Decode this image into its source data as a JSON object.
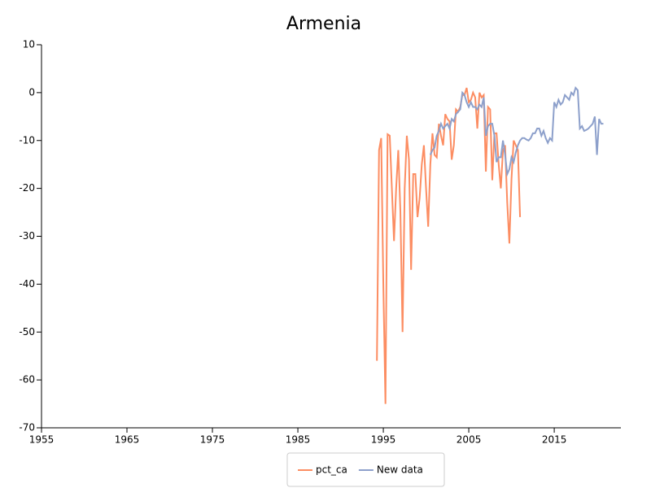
{
  "chart_data": {
    "type": "line",
    "title": "Armenia",
    "xlim": [
      1955,
      2022.8
    ],
    "xticks": [
      1955,
      1965,
      1975,
      1985,
      1995,
      2005,
      2015
    ],
    "ylim": [
      -70,
      10
    ],
    "yticks": [
      10,
      0,
      -10,
      -20,
      -30,
      -40,
      -50,
      -60,
      -70
    ],
    "legend": "bottom",
    "series": [
      {
        "name": "pct_ca",
        "color": "#fc8d62",
        "x": [
          1994.25,
          1994.5,
          1994.75,
          1995,
          1995.25,
          1995.5,
          1995.75,
          1996,
          1996.25,
          1996.5,
          1996.75,
          1997,
          1997.25,
          1997.5,
          1997.75,
          1998,
          1998.25,
          1998.5,
          1998.75,
          1999,
          1999.25,
          1999.5,
          1999.75,
          2000,
          2000.25,
          2000.5,
          2000.75,
          2001,
          2001.25,
          2001.5,
          2001.75,
          2002,
          2002.25,
          2002.5,
          2002.75,
          2003,
          2003.25,
          2003.5,
          2003.75,
          2004,
          2004.25,
          2004.5,
          2004.75,
          2005,
          2005.25,
          2005.5,
          2005.75,
          2006,
          2006.25,
          2006.5,
          2006.75,
          2007,
          2007.25,
          2007.5,
          2007.75,
          2008,
          2008.25,
          2008.5,
          2008.75,
          2009,
          2009.25,
          2009.5,
          2009.75,
          2010,
          2010.25,
          2010.5,
          2010.75,
          2011
        ],
        "values": [
          -56,
          -12,
          -9.5,
          -40,
          -65,
          -8.7,
          -9,
          -20,
          -31,
          -20,
          -12,
          -25,
          -50,
          -20,
          -9,
          -14,
          -37,
          -17,
          -17,
          -26,
          -22,
          -15,
          -11,
          -20,
          -28,
          -15,
          -8.5,
          -13,
          -13.5,
          -6.5,
          -9,
          -11,
          -4.5,
          -5.5,
          -6,
          -14,
          -11,
          -3.5,
          -4,
          -3,
          -0.5,
          -0.5,
          1,
          -2,
          -1.5,
          0,
          -1,
          -7.5,
          0,
          -1,
          -0.5,
          -16.5,
          -3,
          -3.5,
          -18.3,
          -8.5,
          -8.5,
          -15,
          -20,
          -12,
          -11,
          -23,
          -31.5,
          -18,
          -10,
          -11,
          -12,
          -26
        ]
      },
      {
        "name": "New data",
        "color": "#8da0cb",
        "x": [
          2000.5,
          2000.75,
          2001,
          2001.25,
          2001.5,
          2001.75,
          2002,
          2002.25,
          2002.5,
          2002.75,
          2003,
          2003.25,
          2003.5,
          2003.75,
          2004,
          2004.25,
          2004.5,
          2004.75,
          2005,
          2005.25,
          2005.5,
          2005.75,
          2006,
          2006.25,
          2006.5,
          2006.75,
          2007,
          2007.25,
          2007.5,
          2007.75,
          2008,
          2008.25,
          2008.5,
          2008.75,
          2009,
          2009.25,
          2009.5,
          2009.75,
          2010,
          2010.25,
          2010.5,
          2010.75,
          2011,
          2011.25,
          2011.5,
          2011.75,
          2012,
          2012.25,
          2012.5,
          2012.75,
          2013,
          2013.25,
          2013.5,
          2013.75,
          2014,
          2014.25,
          2014.5,
          2014.75,
          2015,
          2015.25,
          2015.5,
          2015.75,
          2016,
          2016.25,
          2016.5,
          2016.75,
          2017,
          2017.25,
          2017.5,
          2017.75,
          2018,
          2018.25,
          2018.5,
          2018.75,
          2019,
          2019.25,
          2019.5,
          2019.75,
          2020,
          2020.25,
          2020.5,
          2020.75
        ],
        "values": [
          -13,
          -12,
          -11.5,
          -9,
          -8,
          -6.5,
          -7.5,
          -7,
          -6.5,
          -7.5,
          -5.5,
          -6,
          -4.5,
          -4,
          -3.5,
          0,
          -0.5,
          -2,
          -3,
          -2,
          -3,
          -3,
          -3.5,
          -2.5,
          -3,
          -1,
          -9,
          -7,
          -6.5,
          -6.5,
          -9,
          -14.5,
          -13.5,
          -13.5,
          -10,
          -13,
          -17,
          -16,
          -13.5,
          -14.5,
          -12.5,
          -11,
          -10,
          -9.5,
          -9.5,
          -9.8,
          -10,
          -9.5,
          -8.5,
          -8.5,
          -7.5,
          -7.5,
          -9,
          -8,
          -9.5,
          -10.5,
          -9.5,
          -10,
          -2,
          -3,
          -1.5,
          -2.5,
          -2,
          -0.5,
          -1,
          -1.5,
          0,
          -0.5,
          1,
          0.5,
          -7.5,
          -7,
          -8,
          -7.8,
          -7.5,
          -7,
          -6.5,
          -5,
          -13,
          -5.5,
          -6.5,
          -6.5
        ]
      }
    ]
  }
}
